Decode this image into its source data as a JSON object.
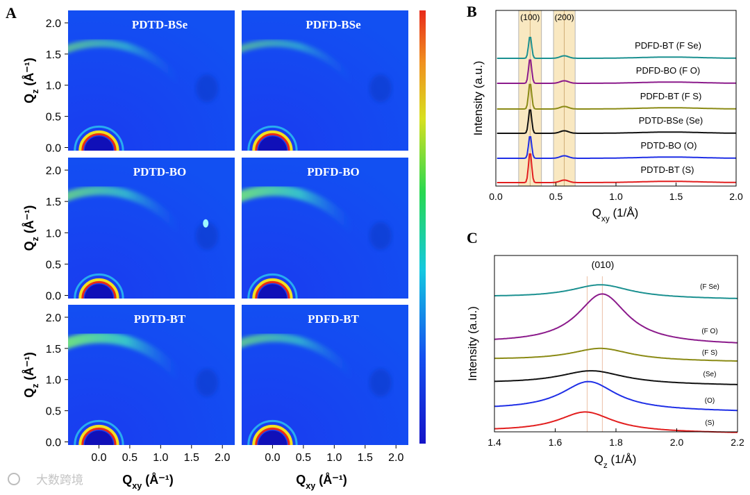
{
  "panel_letters": {
    "A": "A",
    "B": "B",
    "C": "C"
  },
  "watermark": "大数跨境",
  "chart_data": [
    {
      "type": "heatmap",
      "panel": "A",
      "maps": [
        {
          "title": "PDTD-BSe",
          "ring_strength": 0.55,
          "spot": false
        },
        {
          "title": "PDFD-BSe",
          "ring_strength": 0.45,
          "spot": false
        },
        {
          "title": "PDTD-BO",
          "ring_strength": 0.75,
          "spot": true
        },
        {
          "title": "PDFD-BO",
          "ring_strength": 0.95,
          "spot": false
        },
        {
          "title": "PDTD-BT",
          "ring_strength": 1.0,
          "spot": false
        },
        {
          "title": "PDFD-BT",
          "ring_strength": 0.65,
          "spot": false
        }
      ],
      "xlabel": "Qxy (Å⁻¹)",
      "ylabel": "Qz (Å⁻¹)",
      "xticks": [
        "0.0",
        "0.5",
        "1.0",
        "1.5",
        "2.0"
      ],
      "yticks": [
        "0.0",
        "0.5",
        "1.0",
        "1.5",
        "2.0"
      ],
      "xlim": [
        -0.5,
        2.2
      ],
      "ylim": [
        -0.05,
        2.2
      ],
      "colors": {
        "low": "#1414c8",
        "high": "#e82a1a"
      }
    },
    {
      "type": "line",
      "panel": "B",
      "xlabel": "Qxy (1/Å)",
      "ylabel": "Intensity (a.u.)",
      "xlim": [
        0,
        2.0
      ],
      "xticks": [
        "0.0",
        "0.5",
        "1.0",
        "1.5",
        "2.0"
      ],
      "peak_labels": [
        "(100)",
        "(200)"
      ],
      "highlight_bands": [
        [
          0.19,
          0.38
        ],
        [
          0.48,
          0.66
        ]
      ],
      "peak_positions": [
        0.285,
        0.57
      ],
      "series": [
        {
          "name": "PDFD-BT (F Se)",
          "color": "#1a9090",
          "peak": 0.3
        },
        {
          "name": "PDFD-BO (F O)",
          "color": "#8b1a8b",
          "peak": 0.38
        },
        {
          "name": "PDFD-BT (F S)",
          "color": "#8a8a14",
          "peak": 0.42
        },
        {
          "name": "PDTD-BSe (Se)",
          "color": "#111111",
          "peak": 0.38
        },
        {
          "name": "PDTD-BO (O)",
          "color": "#1e2ee6",
          "peak": 0.32
        },
        {
          "name": "PDTD-BT (S)",
          "color": "#e21e1e",
          "peak": 0.55
        }
      ]
    },
    {
      "type": "line",
      "panel": "C",
      "xlabel": "Qz (1/Å)",
      "ylabel": "Intensity (a.u.)",
      "xlim": [
        1.4,
        2.2
      ],
      "xticks": [
        "1.4",
        "1.6",
        "1.8",
        "2.0",
        "2.2"
      ],
      "peak_label": "(010)",
      "reference_lines": [
        1.705,
        1.755
      ],
      "series": [
        {
          "name": "(F Se)",
          "color": "#1a9090",
          "center": 1.75,
          "height": 0.12,
          "width": 0.12
        },
        {
          "name": "(F O)",
          "color": "#8b1a8b",
          "center": 1.755,
          "height": 0.45,
          "width": 0.1
        },
        {
          "name": "(F S)",
          "color": "#8a8a14",
          "center": 1.75,
          "height": 0.11,
          "width": 0.12
        },
        {
          "name": "(Se)",
          "color": "#111111",
          "center": 1.72,
          "height": 0.12,
          "width": 0.13
        },
        {
          "name": "(O)",
          "color": "#1e2ee6",
          "center": 1.71,
          "height": 0.26,
          "width": 0.11
        },
        {
          "name": "(S)",
          "color": "#e21e1e",
          "center": 1.7,
          "height": 0.18,
          "width": 0.11
        }
      ]
    }
  ]
}
